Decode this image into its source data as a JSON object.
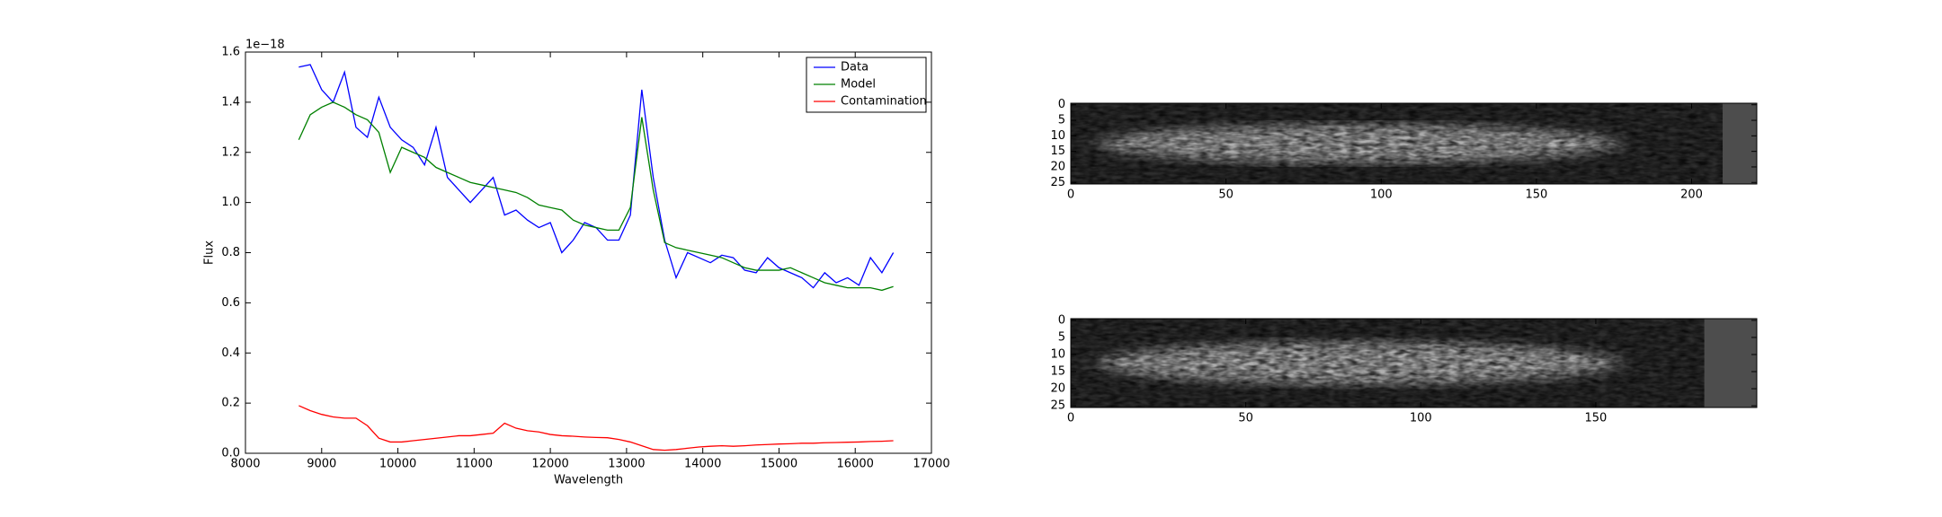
{
  "chart_data": [
    {
      "type": "line",
      "x_label": "Wavelength",
      "y_label": "Flux",
      "offset_text": "1e−18",
      "x": [
        8700,
        8850,
        9000,
        9150,
        9300,
        9450,
        9600,
        9750,
        9900,
        10050,
        10200,
        10350,
        10500,
        10650,
        10800,
        10950,
        11100,
        11250,
        11400,
        11550,
        11700,
        11850,
        12000,
        12150,
        12300,
        12450,
        12600,
        12750,
        12900,
        13050,
        13200,
        13350,
        13500,
        13650,
        13800,
        13950,
        14100,
        14250,
        14400,
        14550,
        14700,
        14850,
        15000,
        15150,
        15300,
        15450,
        15600,
        15750,
        15900,
        16050,
        16200,
        16350,
        16500
      ],
      "series": [
        {
          "name": "Data",
          "color": "#0000ff",
          "values": [
            1.54,
            1.55,
            1.45,
            1.4,
            1.52,
            1.3,
            1.26,
            1.42,
            1.3,
            1.25,
            1.22,
            1.15,
            1.3,
            1.1,
            1.05,
            1.0,
            1.05,
            1.1,
            0.95,
            0.97,
            0.93,
            0.9,
            0.92,
            0.8,
            0.85,
            0.92,
            0.9,
            0.85,
            0.85,
            0.95,
            1.45,
            1.1,
            0.85,
            0.7,
            0.8,
            0.78,
            0.76,
            0.79,
            0.78,
            0.73,
            0.72,
            0.78,
            0.74,
            0.72,
            0.7,
            0.66,
            0.72,
            0.68,
            0.7,
            0.67,
            0.78,
            0.72,
            0.8
          ]
        },
        {
          "name": "Model",
          "color": "#008000",
          "values": [
            1.25,
            1.35,
            1.38,
            1.4,
            1.38,
            1.35,
            1.33,
            1.28,
            1.12,
            1.22,
            1.2,
            1.18,
            1.14,
            1.12,
            1.1,
            1.08,
            1.07,
            1.06,
            1.05,
            1.04,
            1.02,
            0.99,
            0.98,
            0.97,
            0.93,
            0.91,
            0.9,
            0.89,
            0.89,
            0.98,
            1.34,
            1.05,
            0.84,
            0.82,
            0.81,
            0.8,
            0.79,
            0.78,
            0.76,
            0.74,
            0.73,
            0.73,
            0.73,
            0.74,
            0.72,
            0.7,
            0.68,
            0.67,
            0.66,
            0.66,
            0.66,
            0.65,
            0.665
          ]
        },
        {
          "name": "Contamination",
          "color": "#ff0000",
          "values": [
            0.19,
            0.17,
            0.155,
            0.145,
            0.14,
            0.14,
            0.11,
            0.06,
            0.045,
            0.045,
            0.05,
            0.055,
            0.06,
            0.065,
            0.07,
            0.07,
            0.075,
            0.08,
            0.12,
            0.1,
            0.09,
            0.085,
            0.075,
            0.07,
            0.068,
            0.065,
            0.063,
            0.062,
            0.055,
            0.045,
            0.03,
            0.015,
            0.012,
            0.015,
            0.02,
            0.025,
            0.028,
            0.03,
            0.028,
            0.03,
            0.033,
            0.035,
            0.037,
            0.038,
            0.04,
            0.04,
            0.042,
            0.043,
            0.044,
            0.045,
            0.047,
            0.048,
            0.05
          ]
        }
      ],
      "xlim": [
        8000,
        17000
      ],
      "xticks": [
        8000,
        9000,
        10000,
        11000,
        12000,
        13000,
        14000,
        15000,
        16000,
        17000
      ],
      "ylim": [
        0,
        1.6
      ],
      "yticks": [
        {
          "value": 0,
          "label": "0.0"
        },
        0.2,
        0.4,
        0.6,
        0.8,
        {
          "value": 1,
          "label": "1.0"
        },
        1.2,
        1.4,
        1.6
      ],
      "legend": "upper right"
    },
    {
      "type": "image",
      "xlim": [
        0,
        221
      ],
      "xticks": [
        0,
        50,
        100,
        150,
        200
      ],
      "ylim": [
        25.5,
        -0.5
      ],
      "yticks": [
        0,
        5,
        10,
        15,
        20,
        25
      ],
      "pad_from": 210
    },
    {
      "type": "image",
      "xlim": [
        0,
        196
      ],
      "xticks": [
        0,
        50,
        100,
        150
      ],
      "ylim": [
        25.5,
        -0.5
      ],
      "yticks": [
        0,
        5,
        10,
        15,
        20,
        25
      ],
      "pad_from": 181
    }
  ]
}
